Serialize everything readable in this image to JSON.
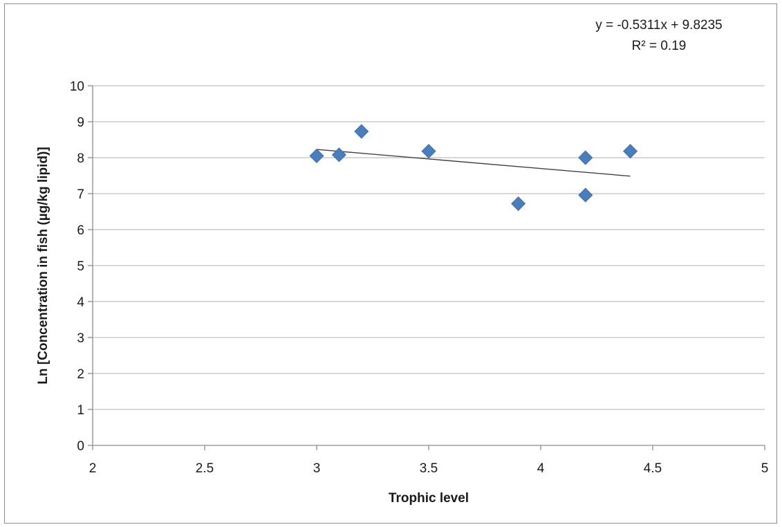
{
  "chart_data": {
    "type": "scatter",
    "title": "",
    "xlabel": "Trophic level",
    "ylabel": "Ln [Concentration in fish (µg/kg lipid)]",
    "xlim": [
      2,
      5
    ],
    "ylim": [
      0,
      10
    ],
    "x_ticks": [
      "2",
      "2.5",
      "3",
      "3.5",
      "4",
      "4.5",
      "5"
    ],
    "y_ticks": [
      "0",
      "1",
      "2",
      "3",
      "4",
      "5",
      "6",
      "7",
      "8",
      "9",
      "10"
    ],
    "grid": "horizontal",
    "marker": "diamond",
    "marker_color": "#4a7ebb",
    "series": [
      {
        "points": [
          {
            "x": 3.0,
            "y": 8.05
          },
          {
            "x": 3.1,
            "y": 8.08
          },
          {
            "x": 3.2,
            "y": 8.73
          },
          {
            "x": 3.5,
            "y": 8.18
          },
          {
            "x": 3.9,
            "y": 6.72
          },
          {
            "x": 4.2,
            "y": 8.0
          },
          {
            "x": 4.2,
            "y": 6.96
          },
          {
            "x": 4.4,
            "y": 8.18
          }
        ]
      }
    ],
    "trendline": {
      "type": "linear",
      "slope": -0.5311,
      "intercept": 9.8235,
      "x_range": [
        3.0,
        4.4
      ],
      "color": "#404040"
    },
    "annotations": {
      "equation": "y = -0.5311x + 9.8235",
      "r_squared": "R² = 0.19"
    }
  }
}
